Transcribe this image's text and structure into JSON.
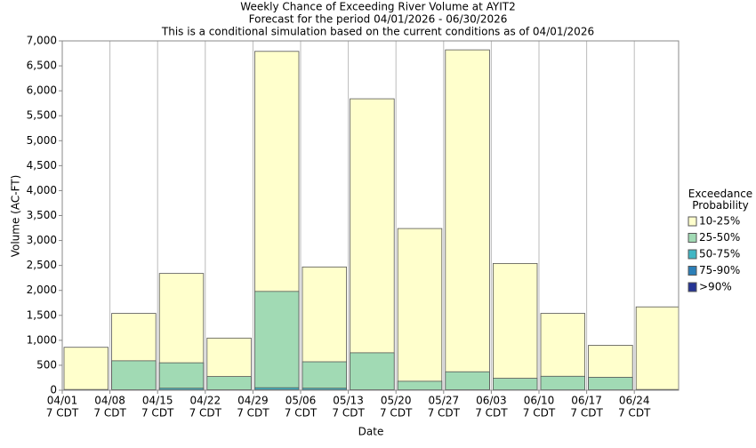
{
  "chart_data": {
    "type": "bar",
    "title": "Weekly Chance of Exceeding River Volume at AYIT2",
    "subtitle": "Forecast for the period 04/01/2026 - 06/30/2026",
    "note": "This is a conditional simulation based on the current conditions as of 04/01/2026",
    "x_label": "Date",
    "y_label": "Volume (AC-FT)",
    "legend_title": "Exceedance Probability",
    "categories": [
      "04/01",
      "04/08",
      "04/15",
      "04/22",
      "04/29",
      "05/06",
      "05/13",
      "05/20",
      "05/27",
      "06/03",
      "06/10",
      "06/17",
      "06/24"
    ],
    "category_times": [
      "7 CDT",
      "7 CDT",
      "7 CDT",
      "7 CDT",
      "7 CDT",
      "7 CDT",
      "7 CDT",
      "7 CDT",
      "7 CDT",
      "7 CDT",
      "7 CDT",
      "7 CDT",
      "7 CDT"
    ],
    "series": [
      {
        "name": "10-25%",
        "color": "#ffffcc",
        "values": [
          860,
          1540,
          2340,
          1045,
          6790,
          2470,
          5840,
          3240,
          6820,
          2540,
          1540,
          900,
          1670
        ]
      },
      {
        "name": "25-50%",
        "color": "#a1dab4",
        "values": [
          15,
          590,
          550,
          275,
          1980,
          570,
          750,
          180,
          370,
          240,
          280,
          260,
          15
        ]
      },
      {
        "name": "50-75%",
        "color": "#41b6c4",
        "values": [
          8,
          10,
          40,
          10,
          50,
          40,
          10,
          8,
          10,
          8,
          8,
          8,
          8
        ]
      },
      {
        "name": "75-90%",
        "color": "#2c7fb8",
        "values": [
          4,
          5,
          8,
          5,
          10,
          8,
          5,
          4,
          5,
          4,
          4,
          4,
          4
        ]
      },
      {
        "name": ">90%",
        "color": "#253494",
        "values": [
          2,
          2,
          3,
          2,
          4,
          3,
          2,
          2,
          2,
          2,
          2,
          2,
          2
        ]
      }
    ],
    "ylim": [
      0,
      7000
    ],
    "yticks": [
      0,
      500,
      {
        "value": 1000,
        "label": "1,000"
      },
      {
        "value": 1500,
        "label": "1,500"
      },
      {
        "value": 2000,
        "label": "2,000"
      },
      {
        "value": 2500,
        "label": "2,500"
      },
      {
        "value": 3000,
        "label": "3,000"
      },
      {
        "value": 3500,
        "label": "3,500"
      },
      {
        "value": 4000,
        "label": "4,000"
      },
      {
        "value": 4500,
        "label": "4,500"
      },
      {
        "value": 5000,
        "label": "5,000"
      },
      {
        "value": 5500,
        "label": "5,500"
      },
      {
        "value": 6000,
        "label": "6,000"
      },
      {
        "value": 6500,
        "label": "6,500"
      },
      {
        "value": 7000,
        "label": "7,000"
      }
    ],
    "grid": true
  }
}
